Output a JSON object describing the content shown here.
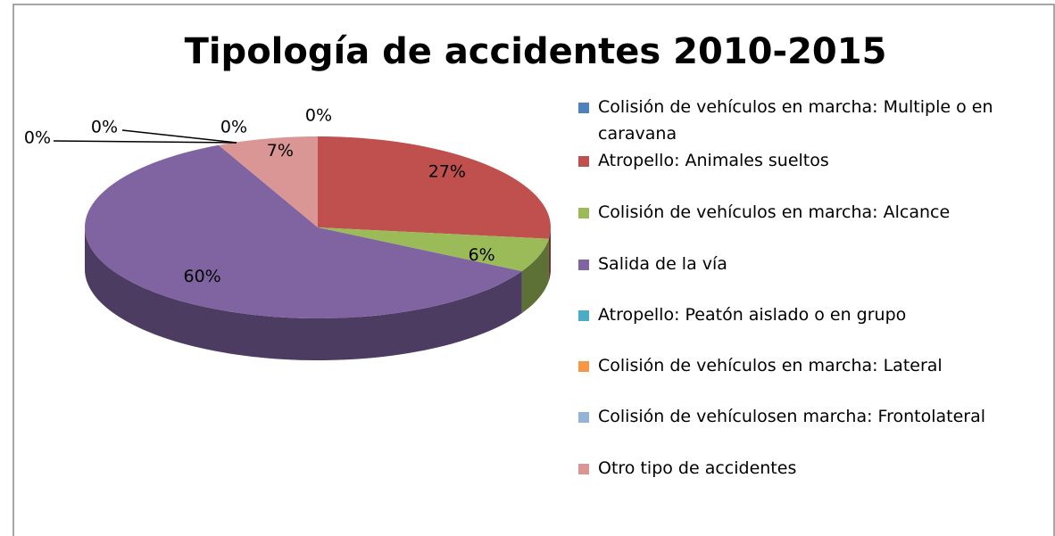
{
  "chart_data": {
    "type": "pie3d",
    "title": "Tipología de accidentes 2010-2015",
    "categories": [
      "Colisión de vehículos en marcha: Multiple o en caravana",
      "Atropello: Animales sueltos",
      "Colisión de vehículos en marcha: Alcance",
      "Salida de la vía",
      "Atropello: Peatón aislado o en grupo",
      "Colisión de vehículos en marcha: Lateral",
      "Colisión de vehículosen marcha: Frontolateral",
      "Otro tipo de accidentes"
    ],
    "values": [
      0,
      27,
      6,
      60,
      0,
      0,
      0,
      7
    ],
    "value_labels": [
      "0%",
      "27%",
      "6%",
      "60%",
      "0%",
      "0%",
      "0%",
      "7%"
    ],
    "colors": [
      "#4F81BD",
      "#C0504D",
      "#9BBB59",
      "#8064A2",
      "#4BACC6",
      "#F79646",
      "#95B3D7",
      "#D99694"
    ],
    "legend": "right"
  }
}
